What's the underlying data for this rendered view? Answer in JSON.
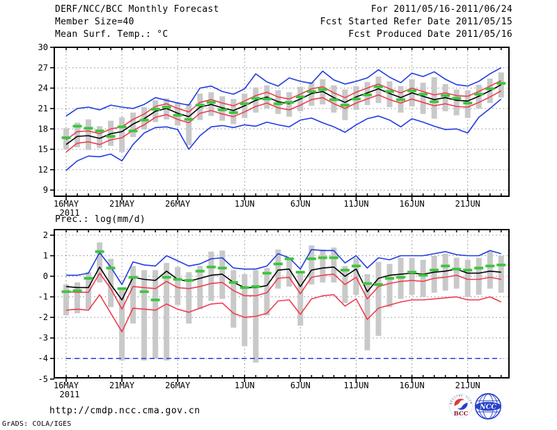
{
  "header": {
    "title": "DERF/NCC/BCC Monthly Forecast",
    "member_size": "Member Size=40",
    "panel1_label": "Mean Surf. Temp.: °C",
    "for_range": "For 2011/05/16-2011/06/24",
    "fcst_started": "Fcst Started Refer Date 2011/05/15",
    "fcst_produced": "Fcst Produced Date 2011/05/16"
  },
  "panel2_label": "Prec.: log(mm/d)",
  "footer": {
    "url": "http://cmdp.ncc.cma.gov.cn",
    "grads_credit": "GrADS: COLA/IGES"
  },
  "logos": {
    "bcc_text": "BCC",
    "bcc_ring_text": "BEIJING CLIMATE CENTER",
    "ncc_text": "NCC"
  },
  "colors": {
    "blue": "#1f3be0",
    "red": "#ef3b4e",
    "green": "#3dc53d",
    "black": "#000000",
    "gray_bar": "#c9c9c9",
    "grid": "#757575",
    "frame": "#000000"
  },
  "chart_data": [
    {
      "type": "line",
      "name": "mean-surface-temperature",
      "title": "Mean Surf. Temp.: °C",
      "x": {
        "tick_labels": [
          "16MAY",
          "21MAY",
          "26MAY",
          "1JUN",
          "6JUN",
          "11JUN",
          "16JUN",
          "21JUN"
        ],
        "tick_days": [
          1,
          6,
          11,
          17,
          22,
          27,
          32,
          37
        ],
        "sub_label": "2011",
        "n_days": 40,
        "start_date": "2011/05/16",
        "end_date": "2011/06/24"
      },
      "ylim": [
        8.1,
        30
      ],
      "yticks": [
        30,
        27,
        24,
        21,
        18,
        15,
        12,
        9
      ],
      "grid": "dotted",
      "series": [
        {
          "name": "gray-spread-bar",
          "kind": "bar",
          "color": "#c9c9c9",
          "low": [
            15.0,
            15.3,
            14.9,
            15.2,
            15.5,
            14.6,
            16.8,
            17.9,
            19.0,
            19.4,
            18.5,
            15.6,
            19.3,
            19.9,
            19.2,
            18.7,
            19.6,
            20.4,
            21.0,
            20.2,
            19.8,
            20.6,
            21.4,
            21.6,
            20.4,
            19.3,
            20.8,
            21.5,
            21.8,
            21.2,
            20.4,
            21.3,
            20.2,
            19.5,
            20.6,
            20.0,
            19.6,
            21.0,
            21.8,
            22.6
          ],
          "high": [
            18.1,
            18.9,
            19.4,
            18.4,
            19.2,
            19.7,
            20.4,
            21.2,
            22.2,
            22.5,
            21.9,
            21.7,
            23.2,
            23.4,
            22.8,
            22.4,
            23.2,
            24.1,
            24.4,
            23.7,
            23.4,
            24.2,
            24.9,
            25.3,
            24.4,
            23.8,
            24.3,
            24.9,
            25.7,
            25.0,
            24.3,
            25.3,
            24.8,
            25.6,
            24.6,
            23.8,
            23.7,
            24.5,
            25.4,
            26.3
          ]
        },
        {
          "name": "blue-max-line",
          "kind": "line",
          "color": "#1f3be0",
          "values": [
            19.9,
            21.0,
            21.2,
            20.8,
            21.5,
            21.2,
            21.0,
            21.6,
            22.6,
            22.2,
            21.8,
            21.5,
            24.0,
            24.3,
            23.5,
            23.1,
            23.9,
            26.1,
            24.9,
            24.3,
            25.5,
            25.0,
            24.7,
            26.5,
            25.2,
            24.6,
            25.0,
            25.5,
            26.7,
            25.6,
            24.8,
            26.2,
            25.7,
            26.4,
            25.3,
            24.5,
            24.3,
            25.0,
            26.1,
            27.0
          ]
        },
        {
          "name": "blue-min-line",
          "kind": "line",
          "color": "#1f3be0",
          "values": [
            11.9,
            13.3,
            14.0,
            13.9,
            14.3,
            13.3,
            15.7,
            17.4,
            18.2,
            18.3,
            17.9,
            15.0,
            17.0,
            18.3,
            18.5,
            18.2,
            18.6,
            18.4,
            19.0,
            18.6,
            18.3,
            19.3,
            19.6,
            18.9,
            18.3,
            17.5,
            18.6,
            19.5,
            19.9,
            19.3,
            18.3,
            19.5,
            19.0,
            18.4,
            17.9,
            18.0,
            17.4,
            19.7,
            21.0,
            22.4
          ]
        },
        {
          "name": "red-upper-line",
          "kind": "line",
          "color": "#ef3b4e",
          "values": [
            16.4,
            17.6,
            17.7,
            17.3,
            18.0,
            18.3,
            19.4,
            20.2,
            21.3,
            21.7,
            21.0,
            20.5,
            21.9,
            22.3,
            21.8,
            21.4,
            22.1,
            22.9,
            23.4,
            22.7,
            22.4,
            23.1,
            23.9,
            24.2,
            23.3,
            22.6,
            23.4,
            24.0,
            24.6,
            23.9,
            23.3,
            24.0,
            23.5,
            23.0,
            23.3,
            22.9,
            22.8,
            23.5,
            24.3,
            25.1
          ]
        },
        {
          "name": "red-lower-line",
          "kind": "line",
          "color": "#ef3b4e",
          "values": [
            14.6,
            15.9,
            16.1,
            15.7,
            16.4,
            16.7,
            17.8,
            18.6,
            19.7,
            20.1,
            19.4,
            18.9,
            20.3,
            20.7,
            20.2,
            19.8,
            20.5,
            21.3,
            21.8,
            21.1,
            20.8,
            21.5,
            22.3,
            22.6,
            21.7,
            21.0,
            21.8,
            22.4,
            23.0,
            22.3,
            21.8,
            22.4,
            21.9,
            21.4,
            21.7,
            21.3,
            21.2,
            21.9,
            22.7,
            23.6
          ]
        },
        {
          "name": "black-mean-line",
          "kind": "line",
          "color": "#000000",
          "values": [
            15.7,
            16.9,
            17.0,
            16.6,
            17.3,
            17.6,
            18.7,
            19.5,
            20.6,
            21.0,
            20.3,
            19.8,
            21.2,
            21.6,
            21.1,
            20.7,
            21.4,
            22.2,
            22.7,
            22.0,
            21.7,
            22.4,
            23.2,
            23.5,
            22.6,
            21.9,
            22.7,
            23.3,
            23.9,
            23.2,
            22.6,
            23.3,
            22.8,
            22.3,
            22.6,
            22.2,
            22.1,
            22.8,
            23.6,
            24.5
          ]
        },
        {
          "name": "green-dash-marker",
          "kind": "dash",
          "color": "#3dc53d",
          "values": [
            16.7,
            18.4,
            18.1,
            17.7,
            16.9,
            18.3,
            17.7,
            19.3,
            20.9,
            21.2,
            20.0,
            19.4,
            21.5,
            21.9,
            20.8,
            20.4,
            21.7,
            22.5,
            22.4,
            21.7,
            21.9,
            22.7,
            23.5,
            23.8,
            22.3,
            21.5,
            22.4,
            23.0,
            24.2,
            23.5,
            22.3,
            23.6,
            23.1,
            22.0,
            22.9,
            22.5,
            21.8,
            23.1,
            23.9,
            24.7
          ]
        }
      ]
    },
    {
      "type": "line",
      "name": "precipitation-log",
      "title": "Prec.: log(mm/d)",
      "x": {
        "tick_labels": [
          "16MAY",
          "21MAY",
          "26MAY",
          "1JUN",
          "6JUN",
          "11JUN",
          "16JUN",
          "21JUN"
        ],
        "tick_days": [
          1,
          6,
          11,
          17,
          22,
          27,
          32,
          37
        ],
        "sub_label": "2011",
        "n_days": 40,
        "start_date": "2011/05/16",
        "end_date": "2011/06/24"
      },
      "ylim": [
        -4.94,
        2.27
      ],
      "yticks": [
        2,
        1,
        0,
        -1,
        -2,
        -3,
        -4,
        -5
      ],
      "grid": "dotted",
      "series": [
        {
          "name": "gray-spread-bar",
          "kind": "bar",
          "color": "#c9c9c9",
          "low": [
            -1.9,
            -1.8,
            -1.6,
            -0.3,
            -1.5,
            -4.1,
            -2.3,
            -4.1,
            -4.0,
            -4.1,
            -1.4,
            -2.3,
            -1.6,
            -1.2,
            -1.1,
            -2.5,
            -3.4,
            -4.2,
            -1.9,
            -0.6,
            -0.5,
            -2.4,
            -0.4,
            -0.3,
            -0.3,
            -1.3,
            -0.9,
            -3.6,
            -2.9,
            -1.5,
            -1.1,
            -0.9,
            -1.0,
            -0.8,
            -0.7,
            -0.6,
            -1.0,
            -0.9,
            -0.6,
            -0.8
          ],
          "high": [
            -0.4,
            -0.3,
            0.2,
            1.65,
            0.85,
            -0.6,
            0.5,
            0.3,
            0.3,
            0.65,
            0.45,
            0.2,
            0.5,
            1.2,
            1.25,
            0.3,
            0.1,
            0.3,
            0.4,
            1.3,
            0.9,
            0.2,
            1.5,
            1.3,
            1.4,
            0.5,
            0.9,
            0.1,
            0.7,
            0.6,
            0.9,
            0.9,
            0.8,
            1.0,
            1.1,
            0.9,
            0.8,
            0.9,
            1.2,
            1.0
          ]
        },
        {
          "name": "blue-dry-floor-line",
          "kind": "hline",
          "color": "#1f3be0",
          "value": -4,
          "dashed": true
        },
        {
          "name": "blue-max-line",
          "kind": "line",
          "color": "#1f3be0",
          "values": [
            0.05,
            0.05,
            0.15,
            1.15,
            0.45,
            -0.4,
            0.7,
            0.55,
            0.5,
            1.0,
            0.75,
            0.5,
            0.6,
            0.85,
            0.9,
            0.4,
            0.35,
            0.35,
            0.5,
            1.1,
            0.9,
            0.35,
            1.3,
            1.25,
            1.25,
            0.65,
            1.0,
            0.4,
            0.9,
            0.8,
            1.0,
            1.0,
            1.0,
            1.1,
            1.2,
            1.05,
            1.0,
            1.0,
            1.25,
            1.1
          ]
        },
        {
          "name": "red-upper-line",
          "kind": "line",
          "color": "#ef3b4e",
          "values": [
            -0.75,
            -0.78,
            -0.78,
            0.15,
            -0.6,
            -1.6,
            -0.5,
            -0.55,
            -0.6,
            -0.25,
            -0.55,
            -0.6,
            -0.5,
            -0.35,
            -0.3,
            -0.7,
            -0.95,
            -0.95,
            -0.8,
            -0.1,
            -0.05,
            -0.85,
            -0.05,
            0.05,
            0.1,
            -0.4,
            -0.05,
            -1.1,
            -0.5,
            -0.35,
            -0.25,
            -0.2,
            -0.25,
            -0.1,
            -0.05,
            0.05,
            -0.15,
            -0.15,
            -0.05,
            -0.15
          ]
        },
        {
          "name": "red-lower-line",
          "kind": "line",
          "color": "#ef3b4e",
          "values": [
            -1.65,
            -1.6,
            -1.65,
            -0.9,
            -1.8,
            -2.7,
            -1.55,
            -1.6,
            -1.65,
            -1.35,
            -1.6,
            -1.75,
            -1.55,
            -1.35,
            -1.3,
            -1.8,
            -2.0,
            -1.95,
            -1.8,
            -1.2,
            -1.15,
            -1.85,
            -1.1,
            -0.95,
            -0.9,
            -1.45,
            -1.1,
            -2.1,
            -1.55,
            -1.4,
            -1.25,
            -1.15,
            -1.15,
            -1.1,
            -1.05,
            -1.0,
            -1.15,
            -1.15,
            -1.0,
            -1.25
          ]
        },
        {
          "name": "black-mean-line",
          "kind": "line",
          "color": "#000000",
          "values": [
            -0.5,
            -0.55,
            -0.55,
            0.45,
            -0.4,
            -1.15,
            -0.05,
            -0.15,
            -0.2,
            0.25,
            -0.15,
            -0.25,
            -0.1,
            0.05,
            0.1,
            -0.3,
            -0.55,
            -0.55,
            -0.45,
            0.3,
            0.35,
            -0.5,
            0.3,
            0.4,
            0.45,
            0.0,
            0.35,
            -0.75,
            -0.1,
            0.05,
            0.1,
            0.15,
            0.1,
            0.2,
            0.25,
            0.35,
            0.15,
            0.15,
            0.25,
            0.2
          ]
        },
        {
          "name": "green-dash-marker",
          "kind": "dash",
          "color": "#3dc53d",
          "values": [
            -0.75,
            -0.7,
            -0.1,
            1.2,
            0.4,
            -0.6,
            -0.05,
            -0.75,
            -1.15,
            -0.05,
            -0.15,
            -0.2,
            0.25,
            0.45,
            0.4,
            -0.3,
            -0.55,
            -0.5,
            0.15,
            0.6,
            0.85,
            0.2,
            0.85,
            0.9,
            0.9,
            0.3,
            0.5,
            -0.35,
            -0.4,
            -0.1,
            -0.05,
            0.2,
            0.05,
            0.3,
            0.5,
            0.35,
            0.3,
            0.4,
            0.5,
            0.55
          ]
        }
      ]
    }
  ]
}
